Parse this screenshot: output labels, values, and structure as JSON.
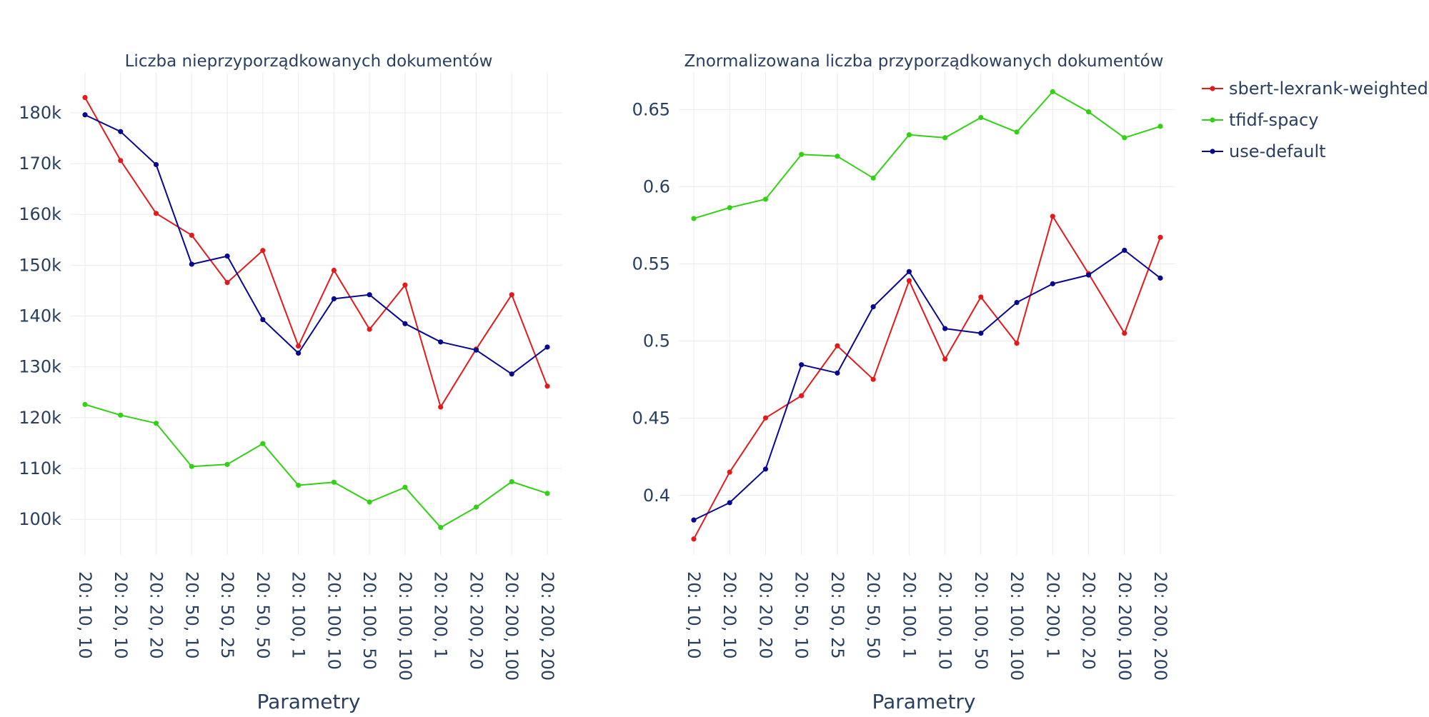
{
  "chart_data": [
    {
      "type": "line",
      "title": "Liczba nieprzyporządkowanych dokumentów",
      "xlabel": "Parametry",
      "ylabel": "",
      "categories": [
        "20: 10, 10",
        "20: 20, 10",
        "20: 20, 20",
        "20: 50, 10",
        "20: 50, 25",
        "20: 50, 50",
        "20: 100, 1",
        "20: 100, 10",
        "20: 100, 50",
        "20: 100, 100",
        "20: 200, 1",
        "20: 200, 20",
        "20: 200, 100",
        "20: 200, 200"
      ],
      "ylim": [
        93000,
        188000
      ],
      "yticks": [
        100000,
        110000,
        120000,
        130000,
        140000,
        150000,
        160000,
        170000,
        180000
      ],
      "ytick_labels": [
        "100k",
        "110k",
        "120k",
        "130k",
        "140k",
        "150k",
        "160k",
        "170k",
        "180k"
      ],
      "grid": true,
      "series": [
        {
          "name": "sbert-lexrank-weighted",
          "color": "#e31a1c",
          "values": [
            183000,
            170600,
            160200,
            155900,
            146600,
            152900,
            134100,
            149000,
            137400,
            146100,
            122100,
            133500,
            144200,
            126200
          ]
        },
        {
          "name": "tfidf-spacy",
          "color": "#33d116",
          "values": [
            122600,
            120500,
            118900,
            110400,
            110800,
            114900,
            106700,
            107300,
            103400,
            106300,
            98400,
            102400,
            107400,
            105100
          ]
        },
        {
          "name": "use-default",
          "color": "#08088f",
          "values": [
            179600,
            176300,
            169800,
            150200,
            151800,
            139300,
            132700,
            143400,
            144200,
            138500,
            134900,
            133300,
            128600,
            133900
          ]
        }
      ]
    },
    {
      "type": "line",
      "title": "Znormalizowana liczba przyporządkowanych dokumentów",
      "xlabel": "Parametry",
      "ylabel": "",
      "categories": [
        "20: 10, 10",
        "20: 20, 10",
        "20: 20, 20",
        "20: 50, 10",
        "20: 50, 25",
        "20: 50, 50",
        "20: 100, 1",
        "20: 100, 10",
        "20: 100, 50",
        "20: 100, 100",
        "20: 200, 1",
        "20: 200, 20",
        "20: 200, 100",
        "20: 200, 200"
      ],
      "ylim": [
        0.3615,
        0.6742
      ],
      "yticks": [
        0.4,
        0.45,
        0.5,
        0.55,
        0.6,
        0.65
      ],
      "ytick_labels": [
        "0.4",
        "0.45",
        "0.5",
        "0.55",
        "0.6",
        "0.65"
      ],
      "grid": true,
      "series": [
        {
          "name": "sbert-lexrank-weighted",
          "color": "#e31a1c",
          "values": [
            0.3718,
            0.4151,
            0.4502,
            0.4646,
            0.4969,
            0.4752,
            0.5391,
            0.4883,
            0.5285,
            0.4986,
            0.5808,
            0.5437,
            0.5051,
            0.5672
          ]
        },
        {
          "name": "tfidf-spacy",
          "color": "#33d116",
          "values": [
            0.5794,
            0.5864,
            0.5919,
            0.6209,
            0.6197,
            0.6056,
            0.6336,
            0.6317,
            0.6448,
            0.6354,
            0.6615,
            0.6485,
            0.6317,
            0.6391
          ]
        },
        {
          "name": "use-default",
          "color": "#08088f",
          "values": [
            0.3841,
            0.3953,
            0.4171,
            0.4847,
            0.4793,
            0.5222,
            0.545,
            0.5081,
            0.5051,
            0.525,
            0.5371,
            0.5428,
            0.5588,
            0.5408
          ]
        }
      ]
    }
  ],
  "legend": {
    "placement": "top-right",
    "items": [
      {
        "name": "sbert-lexrank-weighted",
        "color": "#e31a1c"
      },
      {
        "name": "tfidf-spacy",
        "color": "#33d116"
      },
      {
        "name": "use-default",
        "color": "#08088f"
      }
    ]
  }
}
